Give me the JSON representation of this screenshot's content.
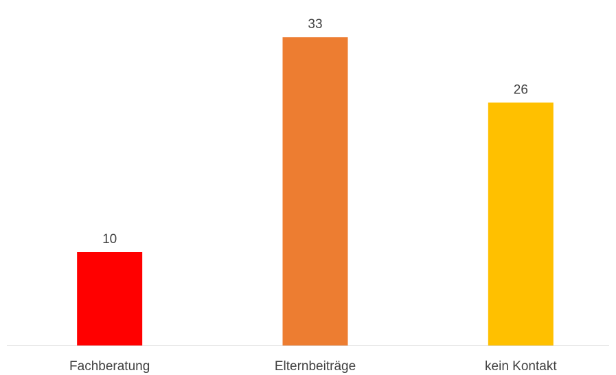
{
  "chart_data": {
    "type": "bar",
    "categories": [
      "Fachberatung",
      "Elternbeiträge",
      "kein Kontakt"
    ],
    "values": [
      10,
      33,
      26
    ],
    "colors": [
      "#FF0000",
      "#ED7D31",
      "#FFC000"
    ],
    "data_labels": [
      "10",
      "33",
      "26"
    ],
    "title": "",
    "xlabel": "",
    "ylabel": "",
    "ylim": [
      0,
      35
    ],
    "grid": false,
    "legend": "none"
  }
}
